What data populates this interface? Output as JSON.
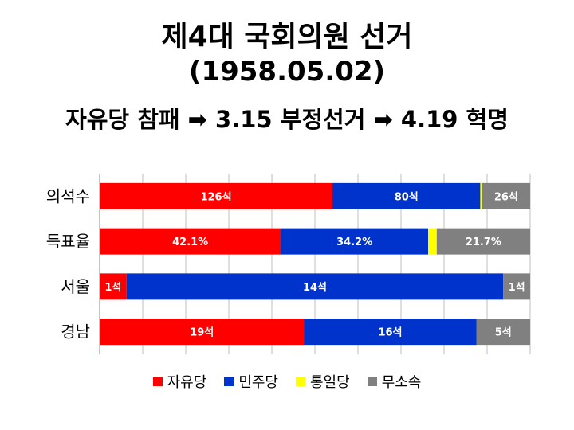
{
  "header": {
    "title": "제4대 국회의원 선거",
    "date": "(1958.05.02)",
    "subtitle": "자유당 참패 ➡ 3.15 부정선거 ➡ 4.19 혁명"
  },
  "chart_data": {
    "type": "bar",
    "orientation": "horizontal-100%-stacked",
    "categories": [
      "의석수",
      "득표율",
      "서울",
      "경남"
    ],
    "series": [
      {
        "name": "자유당",
        "color": "#ff0000",
        "values": [
          126,
          42.1,
          1,
          19
        ],
        "labels": [
          "126석",
          "42.1%",
          "1석",
          "19석"
        ]
      },
      {
        "name": "민주당",
        "color": "#0033cc",
        "values": [
          80,
          34.2,
          14,
          16
        ],
        "labels": [
          "80석",
          "34.2%",
          "14석",
          "16석"
        ]
      },
      {
        "name": "통일당",
        "color": "#ffff00",
        "values": [
          1,
          2.0,
          0,
          0
        ],
        "labels": [
          "",
          "",
          "",
          ""
        ]
      },
      {
        "name": "무소속",
        "color": "#808080",
        "values": [
          26,
          21.7,
          1,
          5
        ],
        "labels": [
          "26석",
          "21.7%",
          "1석",
          "5석"
        ]
      }
    ],
    "grid": true,
    "legend": "bottom"
  }
}
